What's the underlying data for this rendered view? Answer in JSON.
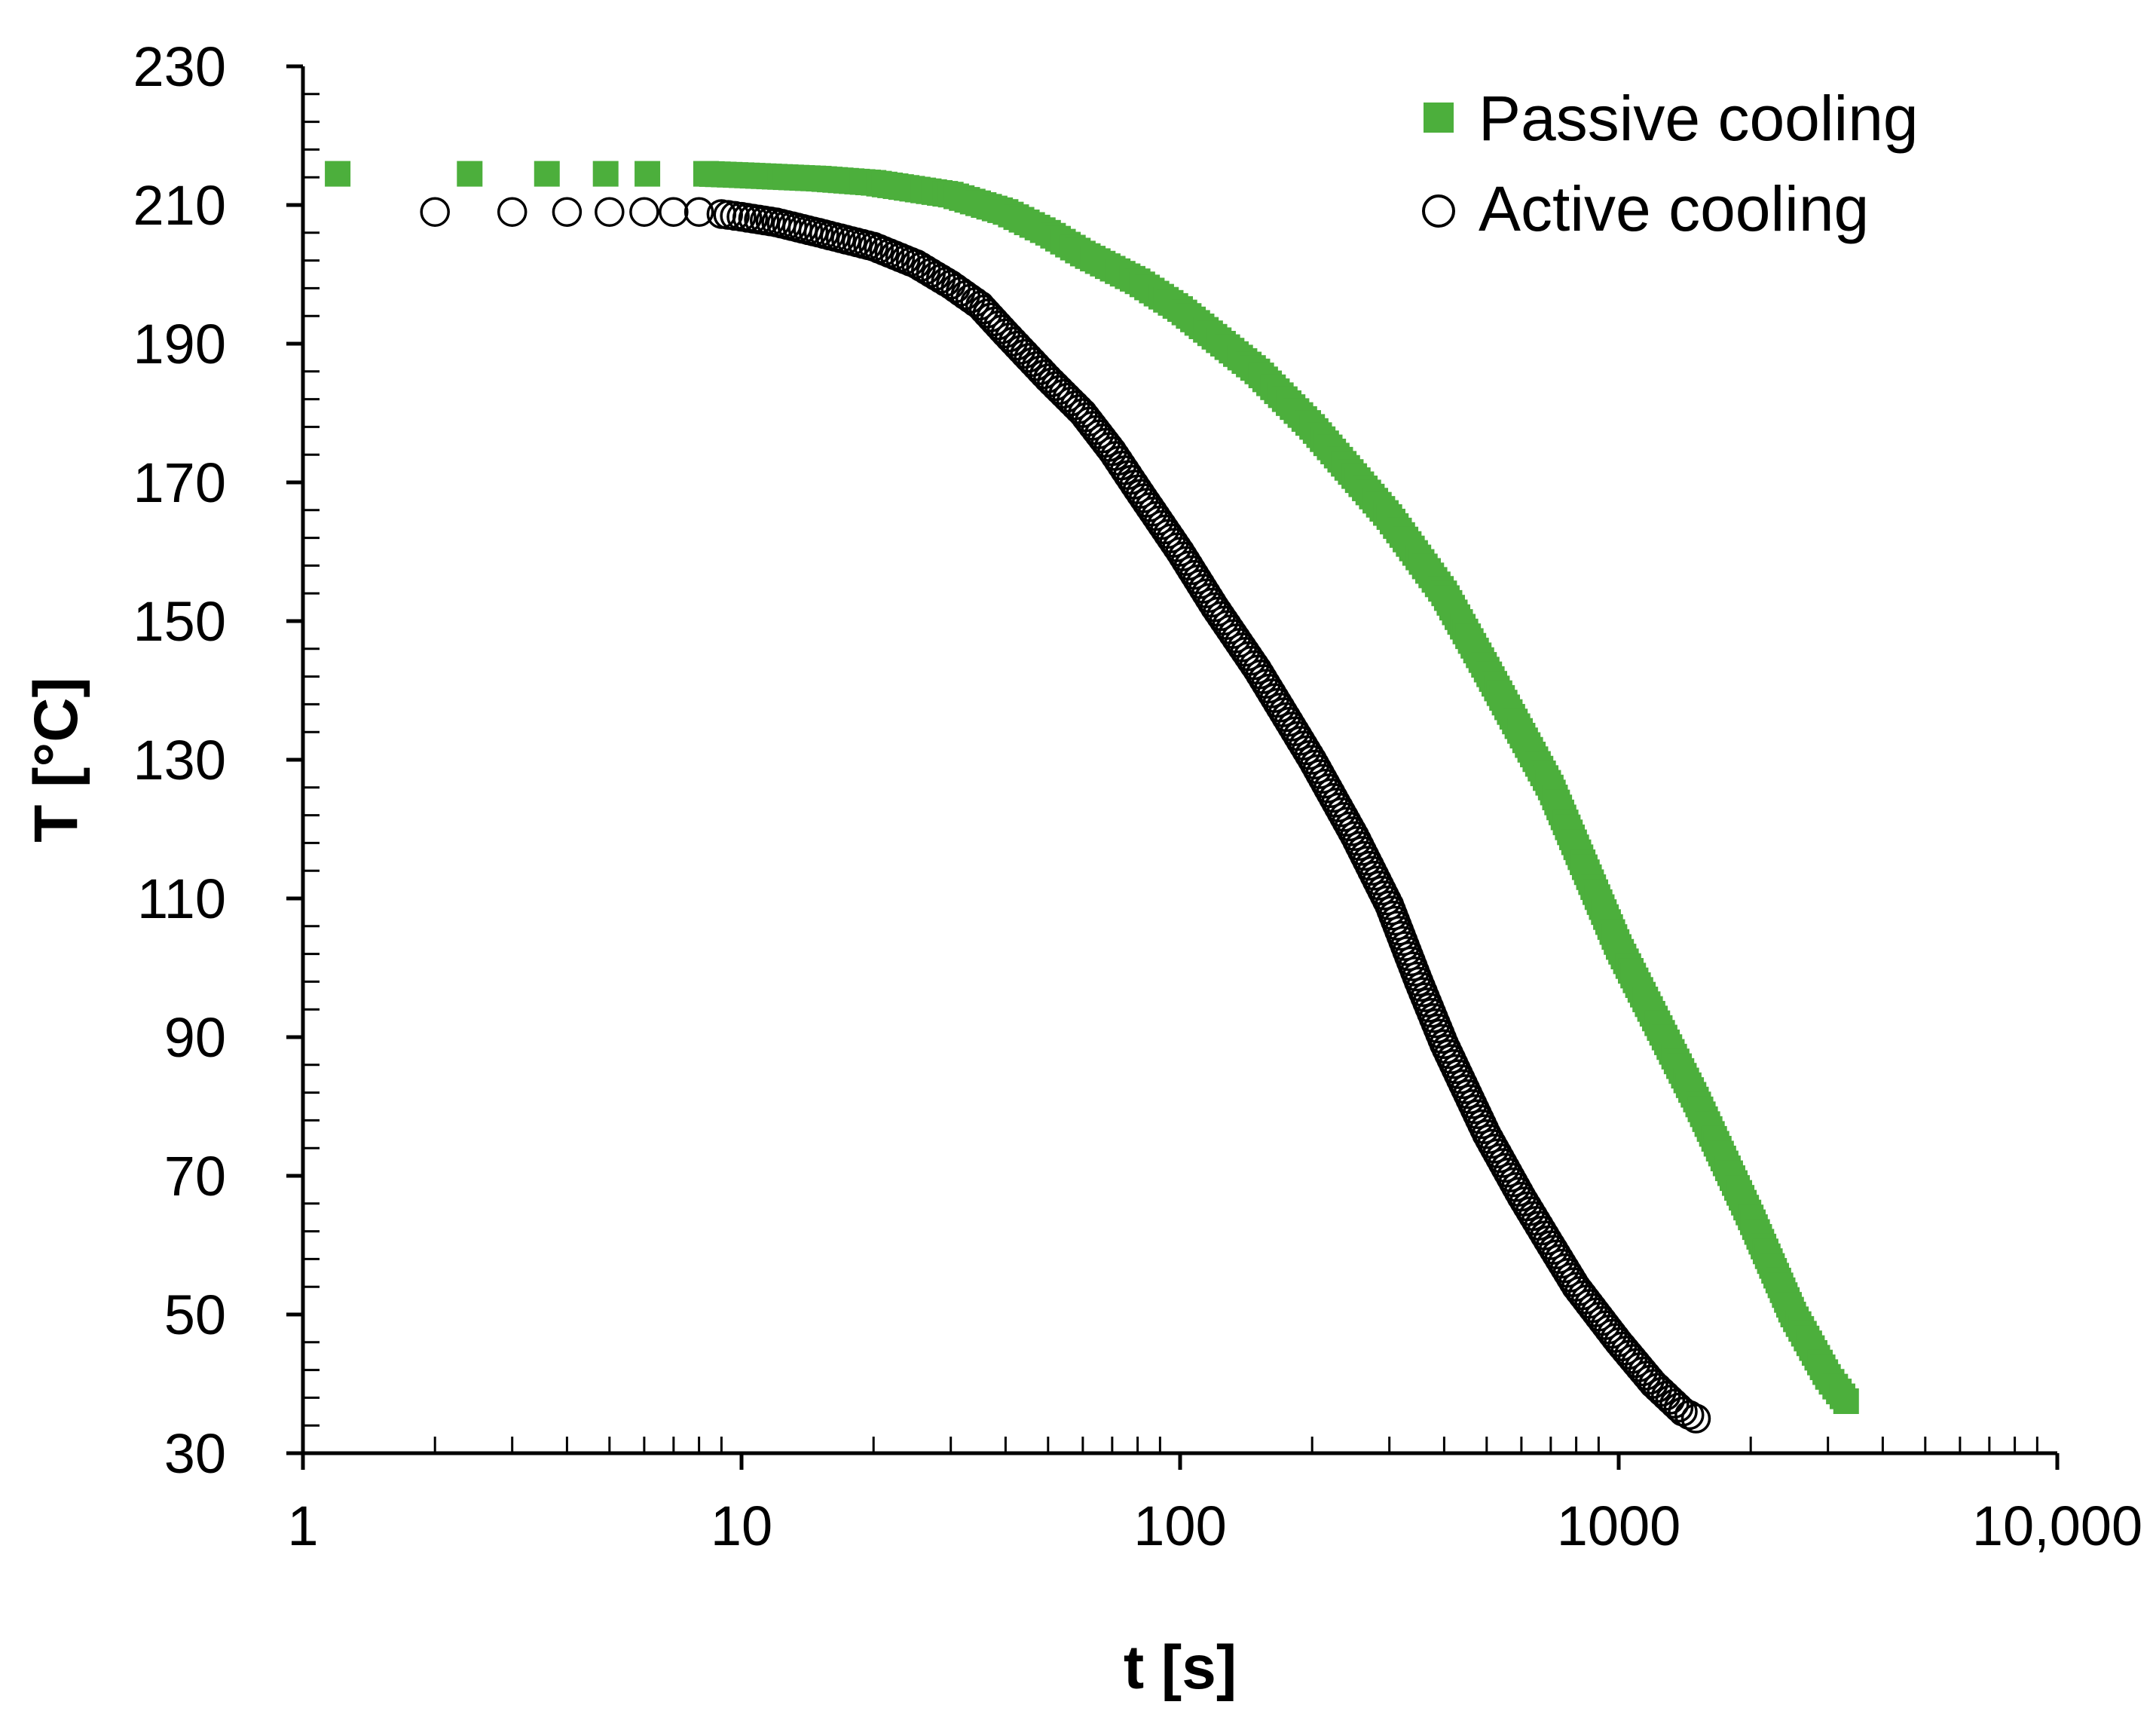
{
  "chart_data": {
    "type": "scatter",
    "title": "",
    "xlabel": "t [s]",
    "ylabel": "T [°C]",
    "xscale": "log",
    "xlim": [
      1,
      10000
    ],
    "ylim": [
      30,
      230
    ],
    "grid": false,
    "legend_position": "top-right",
    "x_ticks": [
      {
        "value": 1,
        "label": "1"
      },
      {
        "value": 10,
        "label": "10"
      },
      {
        "value": 100,
        "label": "100"
      },
      {
        "value": 1000,
        "label": "1000"
      },
      {
        "value": 10000,
        "label": "10,000"
      }
    ],
    "y_ticks": [
      {
        "value": 30,
        "label": "30"
      },
      {
        "value": 50,
        "label": "50"
      },
      {
        "value": 70,
        "label": "70"
      },
      {
        "value": 90,
        "label": "90"
      },
      {
        "value": 110,
        "label": "110"
      },
      {
        "value": 130,
        "label": "130"
      },
      {
        "value": 150,
        "label": "150"
      },
      {
        "value": 170,
        "label": "170"
      },
      {
        "value": 190,
        "label": "190"
      },
      {
        "value": 210,
        "label": "210"
      },
      {
        "value": 230,
        "label": "230"
      }
    ],
    "series": [
      {
        "name": "Passive cooling",
        "marker": "filled-square",
        "color": "#4caf3c",
        "points": [
          [
            1.2,
            214.5
          ],
          [
            2.4,
            214.5
          ],
          [
            3.6,
            214.5
          ],
          [
            4.9,
            214.5
          ],
          [
            6.1,
            214.5
          ],
          [
            8.3,
            214.5
          ],
          [
            10,
            214.3
          ],
          [
            15,
            213.8
          ],
          [
            20,
            213.2
          ],
          [
            30,
            211.5
          ],
          [
            40,
            209
          ],
          [
            50,
            206
          ],
          [
            60,
            203
          ],
          [
            80,
            199
          ],
          [
            100,
            195
          ],
          [
            150,
            186
          ],
          [
            200,
            178
          ],
          [
            300,
            165
          ],
          [
            400,
            154
          ],
          [
            500,
            143
          ],
          [
            700,
            126
          ],
          [
            1000,
            103
          ],
          [
            1500,
            81
          ],
          [
            2000,
            64
          ],
          [
            2500,
            50
          ],
          [
            3000,
            41
          ],
          [
            3300,
            37.5
          ]
        ]
      },
      {
        "name": "Active cooling",
        "marker": "open-circle",
        "color": "#000000",
        "points": [
          [
            2,
            209
          ],
          [
            3,
            209
          ],
          [
            4,
            209
          ],
          [
            5,
            209
          ],
          [
            6,
            209
          ],
          [
            7,
            209
          ],
          [
            8,
            209
          ],
          [
            9,
            208.7
          ],
          [
            10,
            208.3
          ],
          [
            12,
            207.5
          ],
          [
            15,
            206
          ],
          [
            20,
            204
          ],
          [
            25,
            201.5
          ],
          [
            30,
            198.5
          ],
          [
            35,
            195.5
          ],
          [
            40,
            191.5
          ],
          [
            50,
            185
          ],
          [
            60,
            180
          ],
          [
            70,
            174.5
          ],
          [
            80,
            169
          ],
          [
            100,
            160
          ],
          [
            120,
            152
          ],
          [
            150,
            143
          ],
          [
            200,
            130
          ],
          [
            250,
            119
          ],
          [
            300,
            109
          ],
          [
            350,
            98
          ],
          [
            400,
            89
          ],
          [
            500,
            76
          ],
          [
            600,
            67
          ],
          [
            700,
            60
          ],
          [
            800,
            54
          ],
          [
            1000,
            46
          ],
          [
            1200,
            40
          ],
          [
            1400,
            36
          ],
          [
            1500,
            35
          ]
        ]
      }
    ]
  }
}
